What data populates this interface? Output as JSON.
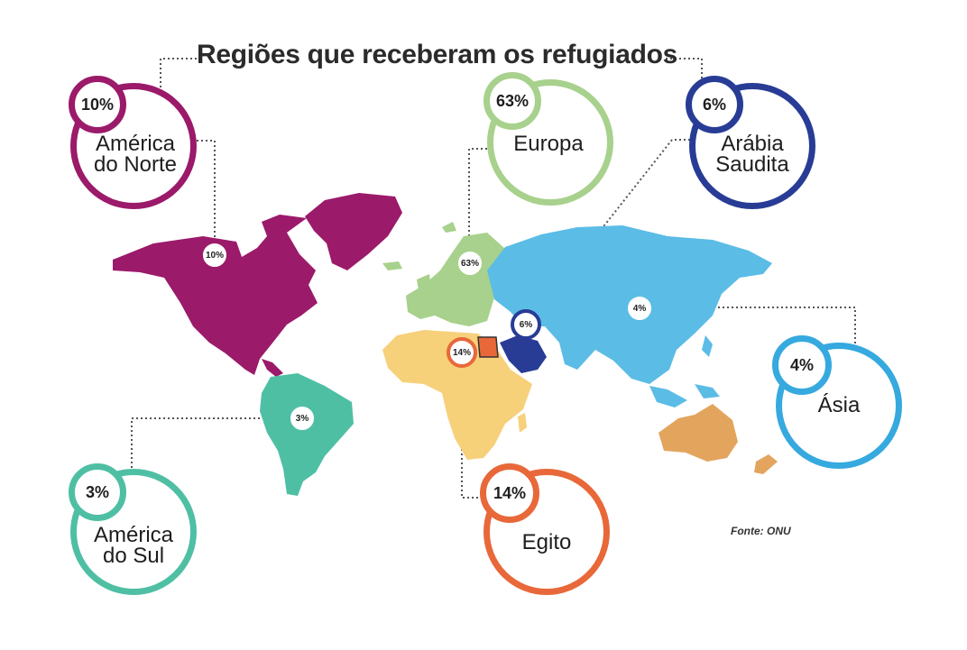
{
  "title": "Regiões que receberam os refugiados",
  "source": "Fonte: ONU",
  "colors": {
    "north_america": "#9b1a6a",
    "europe": "#a7d18c",
    "saudi_arabia": "#283c96",
    "asia": "#5bbce6",
    "south_america": "#4fbfa4",
    "egypt": "#e8683a",
    "africa": "#f7d07a",
    "oceania": "#e3a55e",
    "dotted_line": "#555555"
  },
  "regions": [
    {
      "name": "América do Norte",
      "label": "América\ndo Norte",
      "percent": "10%",
      "value": 10,
      "color": "#9b1a6a"
    },
    {
      "name": "Europa",
      "label": "Europa",
      "percent": "63%",
      "value": 63,
      "color": "#a7d18c"
    },
    {
      "name": "Arábia Saudita",
      "label": "Arábia\nSaudita",
      "percent": "6%",
      "value": 6,
      "color": "#283c96"
    },
    {
      "name": "Ásia",
      "label": "Ásia",
      "percent": "4%",
      "value": 4,
      "color": "#36a9df"
    },
    {
      "name": "América do Sul",
      "label": "América\ndo Sul",
      "percent": "3%",
      "value": 3,
      "color": "#4fbfa4"
    },
    {
      "name": "Egito",
      "label": "Egito",
      "percent": "14%",
      "value": 14,
      "color": "#e8683a"
    }
  ]
}
